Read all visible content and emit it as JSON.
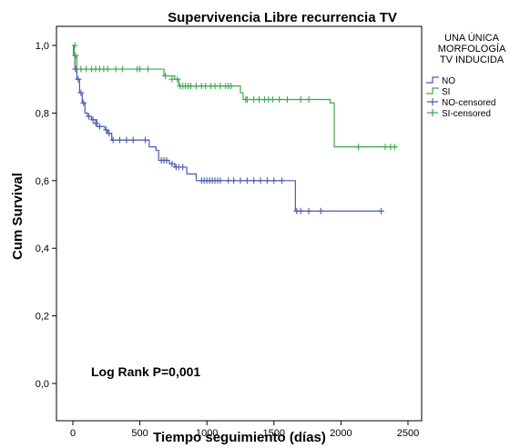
{
  "chart_data": {
    "type": "line",
    "subtype": "kaplan-meier",
    "title": "Supervivencia Libre recurrencia TV",
    "xlabel": "Tiempo seguimiento (días)",
    "ylabel": "Cum Survival",
    "xlim": [
      0,
      2500
    ],
    "ylim": [
      0,
      1
    ],
    "xticks": [
      0,
      500,
      1000,
      1500,
      2000,
      2500
    ],
    "yticks": [
      0,
      0.2,
      0.4,
      0.6,
      0.8,
      1.0
    ],
    "xtick_labels": [
      "0",
      "500",
      "1000",
      "1500",
      "2000",
      "2500"
    ],
    "ytick_labels": [
      "0,0",
      "0,2",
      "0,4",
      "0,6",
      "0,8",
      "1,0"
    ],
    "grid": false,
    "legend": {
      "position": "top-right-outside",
      "title_lines": [
        "UNA ÚNICA",
        "MORFOLOGÍA",
        "TV INDUCIDA"
      ],
      "entries": [
        "NO",
        "SI",
        "NO-censored",
        "SI-censored"
      ]
    },
    "annotation": "Log Rank P=0,001",
    "series": [
      {
        "name": "NO",
        "color": "#4a5bb0",
        "steps": [
          [
            0,
            1.0
          ],
          [
            5,
            0.97
          ],
          [
            15,
            0.93
          ],
          [
            30,
            0.9
          ],
          [
            50,
            0.86
          ],
          [
            70,
            0.83
          ],
          [
            90,
            0.8
          ],
          [
            110,
            0.79
          ],
          [
            140,
            0.78
          ],
          [
            180,
            0.76
          ],
          [
            240,
            0.75
          ],
          [
            260,
            0.74
          ],
          [
            290,
            0.72
          ],
          [
            570,
            0.7
          ],
          [
            620,
            0.69
          ],
          [
            640,
            0.66
          ],
          [
            720,
            0.65
          ],
          [
            760,
            0.64
          ],
          [
            850,
            0.62
          ],
          [
            920,
            0.6
          ],
          [
            1660,
            0.51
          ],
          [
            2300,
            0.51
          ]
        ],
        "censored": [
          [
            20,
            0.93
          ],
          [
            40,
            0.9
          ],
          [
            60,
            0.86
          ],
          [
            80,
            0.83
          ],
          [
            120,
            0.79
          ],
          [
            150,
            0.78
          ],
          [
            170,
            0.77
          ],
          [
            200,
            0.76
          ],
          [
            250,
            0.75
          ],
          [
            270,
            0.74
          ],
          [
            300,
            0.72
          ],
          [
            350,
            0.72
          ],
          [
            400,
            0.72
          ],
          [
            450,
            0.72
          ],
          [
            540,
            0.72
          ],
          [
            660,
            0.66
          ],
          [
            680,
            0.66
          ],
          [
            700,
            0.66
          ],
          [
            740,
            0.65
          ],
          [
            770,
            0.64
          ],
          [
            790,
            0.64
          ],
          [
            820,
            0.64
          ],
          [
            960,
            0.6
          ],
          [
            980,
            0.6
          ],
          [
            1000,
            0.6
          ],
          [
            1020,
            0.6
          ],
          [
            1040,
            0.6
          ],
          [
            1060,
            0.6
          ],
          [
            1080,
            0.6
          ],
          [
            1100,
            0.6
          ],
          [
            1160,
            0.6
          ],
          [
            1200,
            0.6
          ],
          [
            1250,
            0.6
          ],
          [
            1300,
            0.6
          ],
          [
            1350,
            0.6
          ],
          [
            1400,
            0.6
          ],
          [
            1450,
            0.6
          ],
          [
            1500,
            0.6
          ],
          [
            1560,
            0.6
          ],
          [
            1670,
            0.51
          ],
          [
            1700,
            0.51
          ],
          [
            1760,
            0.51
          ],
          [
            1850,
            0.51
          ],
          [
            2300,
            0.51
          ]
        ]
      },
      {
        "name": "SI",
        "color": "#3aa84a",
        "steps": [
          [
            0,
            1.0
          ],
          [
            10,
            0.97
          ],
          [
            30,
            0.93
          ],
          [
            680,
            0.91
          ],
          [
            760,
            0.9
          ],
          [
            790,
            0.88
          ],
          [
            1250,
            0.86
          ],
          [
            1270,
            0.84
          ],
          [
            1920,
            0.83
          ],
          [
            1950,
            0.7
          ],
          [
            2420,
            0.7
          ]
        ],
        "censored": [
          [
            15,
            1.0
          ],
          [
            20,
            0.97
          ],
          [
            60,
            0.93
          ],
          [
            100,
            0.93
          ],
          [
            140,
            0.93
          ],
          [
            170,
            0.93
          ],
          [
            200,
            0.93
          ],
          [
            230,
            0.93
          ],
          [
            260,
            0.93
          ],
          [
            320,
            0.93
          ],
          [
            370,
            0.93
          ],
          [
            480,
            0.93
          ],
          [
            500,
            0.93
          ],
          [
            560,
            0.93
          ],
          [
            690,
            0.91
          ],
          [
            740,
            0.9
          ],
          [
            780,
            0.9
          ],
          [
            800,
            0.88
          ],
          [
            820,
            0.88
          ],
          [
            840,
            0.88
          ],
          [
            860,
            0.88
          ],
          [
            880,
            0.88
          ],
          [
            920,
            0.88
          ],
          [
            960,
            0.88
          ],
          [
            990,
            0.88
          ],
          [
            1030,
            0.88
          ],
          [
            1060,
            0.88
          ],
          [
            1100,
            0.88
          ],
          [
            1140,
            0.88
          ],
          [
            1160,
            0.88
          ],
          [
            1180,
            0.88
          ],
          [
            1290,
            0.84
          ],
          [
            1300,
            0.84
          ],
          [
            1350,
            0.84
          ],
          [
            1390,
            0.84
          ],
          [
            1430,
            0.84
          ],
          [
            1460,
            0.84
          ],
          [
            1490,
            0.84
          ],
          [
            1540,
            0.84
          ],
          [
            1600,
            0.84
          ],
          [
            1700,
            0.84
          ],
          [
            1760,
            0.84
          ],
          [
            2130,
            0.7
          ],
          [
            2330,
            0.7
          ],
          [
            2370,
            0.7
          ],
          [
            2400,
            0.7
          ]
        ]
      }
    ]
  }
}
